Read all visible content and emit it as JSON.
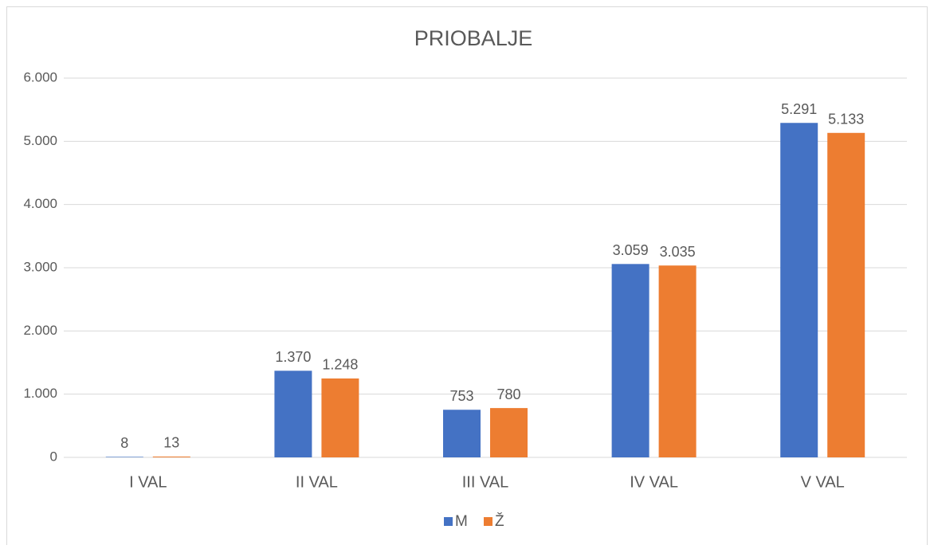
{
  "chart_data": {
    "type": "bar",
    "title": "PRIOBALJE",
    "categories": [
      "I VAL",
      "II VAL",
      "III VAL",
      "IV VAL",
      "V VAL"
    ],
    "series": [
      {
        "name": "M",
        "color": "#4472c4",
        "values": [
          8,
          1370,
          753,
          3059,
          5291
        ],
        "value_labels": [
          "8",
          "1.370",
          "753",
          "3.059",
          "5.291"
        ]
      },
      {
        "name": "Ž",
        "color": "#ed7d31",
        "values": [
          13,
          1248,
          780,
          3035,
          5133
        ],
        "value_labels": [
          "13",
          "1.248",
          "780",
          "3.035",
          "5.133"
        ]
      }
    ],
    "ylim": [
      0,
      6000
    ],
    "yticks": [
      0,
      {
        "value": 1000,
        "label": "1.000"
      },
      {
        "value": 2000,
        "label": "2.000"
      },
      {
        "value": 3000,
        "label": "3.000"
      },
      {
        "value": 4000,
        "label": "4.000"
      },
      {
        "value": 5000,
        "label": "5.000"
      },
      {
        "value": 6000,
        "label": "6.000"
      }
    ],
    "grid": true,
    "legend": "bottom"
  }
}
